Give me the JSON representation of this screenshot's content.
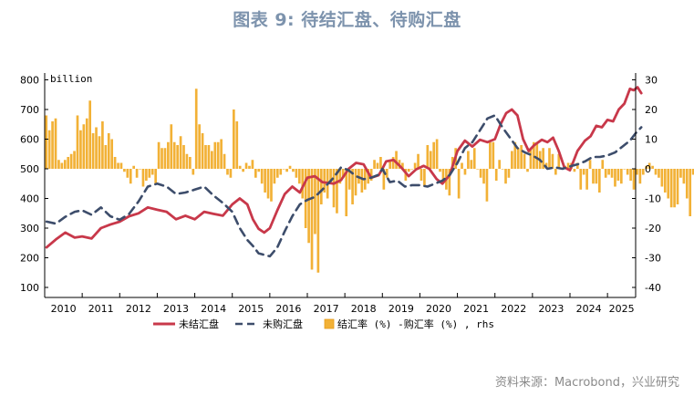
{
  "page": {
    "title": "图表 9:  待结汇盘、待购汇盘",
    "source": "资料来源：Macrobond，兴业研究"
  },
  "colors": {
    "line_settle": "#c8384a",
    "line_purchase": "#3d4d6b",
    "bar": "#f2b136",
    "bar_edge": "#e59a1a",
    "title": "#7d93ad"
  },
  "chart_data": {
    "type": "bar+line",
    "title": "图表 9:  待结汇盘、待购汇盘",
    "y_left": {
      "label": "billion",
      "lim": [
        100,
        800
      ],
      "ticks": [
        800,
        700,
        600,
        500,
        400,
        300,
        200,
        100
      ]
    },
    "y_right": {
      "lim": [
        -40,
        30
      ],
      "ticks": [
        30,
        20,
        10,
        0,
        -10,
        -20,
        -30,
        -40
      ]
    },
    "x": {
      "start": 2010,
      "end": 2025.75,
      "tick_labels": [
        "2010",
        "2011",
        "2012",
        "2013",
        "2014",
        "2015",
        "2016",
        "2017",
        "2018",
        "2019",
        "2020",
        "2021",
        "2022",
        "2023",
        "2024",
        "2025"
      ]
    },
    "legend": [
      "未结汇盘",
      "未购汇盘",
      "结汇率 (%) -购汇率 (%) , rhs"
    ],
    "series": [
      {
        "name": "未结汇盘",
        "axis": "left",
        "style": "solid",
        "points": [
          [
            2010.05,
            235
          ],
          [
            2010.3,
            262
          ],
          [
            2010.55,
            285
          ],
          [
            2010.8,
            268
          ],
          [
            2011.0,
            272
          ],
          [
            2011.25,
            265
          ],
          [
            2011.5,
            300
          ],
          [
            2011.75,
            312
          ],
          [
            2012.0,
            322
          ],
          [
            2012.25,
            340
          ],
          [
            2012.5,
            350
          ],
          [
            2012.75,
            370
          ],
          [
            2013.0,
            362
          ],
          [
            2013.25,
            355
          ],
          [
            2013.5,
            330
          ],
          [
            2013.75,
            342
          ],
          [
            2014.0,
            330
          ],
          [
            2014.25,
            355
          ],
          [
            2014.5,
            348
          ],
          [
            2014.75,
            342
          ],
          [
            2015.0,
            380
          ],
          [
            2015.2,
            400
          ],
          [
            2015.4,
            380
          ],
          [
            2015.55,
            330
          ],
          [
            2015.7,
            298
          ],
          [
            2015.85,
            285
          ],
          [
            2016.0,
            300
          ],
          [
            2016.2,
            360
          ],
          [
            2016.4,
            415
          ],
          [
            2016.6,
            440
          ],
          [
            2016.8,
            420
          ],
          [
            2017.0,
            470
          ],
          [
            2017.2,
            475
          ],
          [
            2017.4,
            455
          ],
          [
            2017.7,
            450
          ],
          [
            2017.9,
            462
          ],
          [
            2018.1,
            500
          ],
          [
            2018.3,
            520
          ],
          [
            2018.5,
            515
          ],
          [
            2018.7,
            470
          ],
          [
            2018.9,
            478
          ],
          [
            2019.0,
            500
          ],
          [
            2019.1,
            525
          ],
          [
            2019.3,
            530
          ],
          [
            2019.5,
            505
          ],
          [
            2019.7,
            475
          ],
          [
            2019.9,
            498
          ],
          [
            2020.1,
            510
          ],
          [
            2020.25,
            500
          ],
          [
            2020.45,
            465
          ],
          [
            2020.6,
            450
          ],
          [
            2020.8,
            480
          ],
          [
            2021.0,
            560
          ],
          [
            2021.2,
            595
          ],
          [
            2021.4,
            575
          ],
          [
            2021.6,
            598
          ],
          [
            2021.8,
            590
          ],
          [
            2022.0,
            600
          ],
          [
            2022.15,
            650
          ],
          [
            2022.3,
            688
          ],
          [
            2022.45,
            700
          ],
          [
            2022.6,
            680
          ],
          [
            2022.75,
            600
          ],
          [
            2022.9,
            560
          ],
          [
            2023.05,
            580
          ],
          [
            2023.25,
            598
          ],
          [
            2023.4,
            590
          ],
          [
            2023.55,
            605
          ],
          [
            2023.7,
            560
          ],
          [
            2023.85,
            505
          ],
          [
            2024.0,
            495
          ],
          [
            2024.2,
            560
          ],
          [
            2024.4,
            595
          ],
          [
            2024.55,
            610
          ],
          [
            2024.7,
            645
          ],
          [
            2024.85,
            640
          ],
          [
            2025.0,
            665
          ],
          [
            2025.15,
            660
          ],
          [
            2025.3,
            700
          ],
          [
            2025.45,
            720
          ],
          [
            2025.6,
            770
          ],
          [
            2025.7,
            765
          ],
          [
            2025.8,
            775
          ],
          [
            2025.9,
            755
          ]
        ]
      },
      {
        "name": "未购汇盘",
        "axis": "left",
        "style": "dashed",
        "points": [
          [
            2010.05,
            322
          ],
          [
            2010.3,
            315
          ],
          [
            2010.55,
            338
          ],
          [
            2010.8,
            355
          ],
          [
            2011.0,
            360
          ],
          [
            2011.25,
            345
          ],
          [
            2011.5,
            370
          ],
          [
            2011.75,
            340
          ],
          [
            2012.0,
            328
          ],
          [
            2012.25,
            348
          ],
          [
            2012.5,
            390
          ],
          [
            2012.75,
            440
          ],
          [
            2013.0,
            450
          ],
          [
            2013.25,
            440
          ],
          [
            2013.5,
            415
          ],
          [
            2013.75,
            420
          ],
          [
            2014.0,
            430
          ],
          [
            2014.25,
            440
          ],
          [
            2014.5,
            410
          ],
          [
            2014.75,
            385
          ],
          [
            2015.0,
            355
          ],
          [
            2015.2,
            300
          ],
          [
            2015.4,
            260
          ],
          [
            2015.55,
            240
          ],
          [
            2015.7,
            215
          ],
          [
            2015.85,
            210
          ],
          [
            2016.0,
            205
          ],
          [
            2016.2,
            235
          ],
          [
            2016.4,
            290
          ],
          [
            2016.6,
            340
          ],
          [
            2016.8,
            380
          ],
          [
            2017.0,
            395
          ],
          [
            2017.2,
            405
          ],
          [
            2017.4,
            430
          ],
          [
            2017.7,
            470
          ],
          [
            2017.9,
            505
          ],
          [
            2018.1,
            495
          ],
          [
            2018.3,
            475
          ],
          [
            2018.5,
            465
          ],
          [
            2018.7,
            470
          ],
          [
            2018.9,
            480
          ],
          [
            2019.0,
            500
          ],
          [
            2019.2,
            455
          ],
          [
            2019.4,
            460
          ],
          [
            2019.6,
            440
          ],
          [
            2019.8,
            445
          ],
          [
            2020.0,
            445
          ],
          [
            2020.2,
            440
          ],
          [
            2020.4,
            450
          ],
          [
            2020.6,
            460
          ],
          [
            2020.8,
            480
          ],
          [
            2021.0,
            520
          ],
          [
            2021.2,
            570
          ],
          [
            2021.4,
            590
          ],
          [
            2021.6,
            630
          ],
          [
            2021.8,
            670
          ],
          [
            2022.0,
            680
          ],
          [
            2022.2,
            640
          ],
          [
            2022.4,
            605
          ],
          [
            2022.6,
            570
          ],
          [
            2022.8,
            555
          ],
          [
            2023.0,
            545
          ],
          [
            2023.2,
            530
          ],
          [
            2023.4,
            500
          ],
          [
            2023.6,
            505
          ],
          [
            2023.8,
            500
          ],
          [
            2024.0,
            508
          ],
          [
            2024.2,
            515
          ],
          [
            2024.4,
            525
          ],
          [
            2024.6,
            540
          ],
          [
            2024.8,
            540
          ],
          [
            2025.0,
            545
          ],
          [
            2025.2,
            555
          ],
          [
            2025.4,
            575
          ],
          [
            2025.6,
            595
          ],
          [
            2025.75,
            620
          ],
          [
            2025.9,
            640
          ]
        ]
      }
    ],
    "bars": {
      "name": "结汇率 (%) -购汇率 (%) , rhs",
      "axis": "right",
      "start": 2010.0,
      "step": 0.0833,
      "values": [
        18,
        13,
        16,
        17,
        3,
        2,
        3,
        4,
        5,
        6,
        18,
        13,
        15,
        17,
        23,
        12,
        14,
        11,
        16,
        8,
        12,
        10,
        4,
        2,
        2,
        -1,
        -3,
        -5,
        1,
        -3,
        0,
        -6,
        -4,
        -3,
        -2,
        -5,
        9,
        7,
        7,
        9,
        15,
        9,
        8,
        11,
        8,
        5,
        4,
        -2,
        27,
        15,
        12,
        8,
        8,
        6,
        9,
        9,
        10,
        5,
        -2,
        -3,
        20,
        16,
        1,
        -1,
        2,
        1,
        3,
        -3,
        -1,
        -5,
        -8,
        -10,
        -11,
        -5,
        -3,
        -2,
        0,
        -1,
        1,
        -1,
        -3,
        -5,
        -10,
        -20,
        -25,
        -34,
        -22,
        -35,
        -12,
        -8,
        -10,
        -5,
        -13,
        -15,
        -5,
        -3,
        -16,
        -7,
        -12,
        -9,
        -5,
        -8,
        -7,
        -5,
        -4,
        3,
        2,
        4,
        -7,
        -3,
        3,
        4,
        6,
        3,
        2,
        -4,
        -1,
        0,
        2,
        5,
        -4,
        -6,
        8,
        6,
        9,
        10,
        -1,
        -4,
        -7,
        -9,
        4,
        7,
        -10,
        2,
        -2,
        6,
        3,
        7,
        0,
        -3,
        -5,
        -11,
        9,
        9,
        -4,
        3,
        0,
        -5,
        -3,
        6,
        9,
        7,
        8,
        5,
        -1,
        7,
        9,
        9,
        6,
        7,
        2,
        7,
        5,
        -2,
        5,
        0,
        1,
        2,
        2,
        -1,
        2,
        -7,
        -2,
        -7,
        3,
        -5,
        -5,
        -8,
        3,
        -3,
        -2,
        -3,
        -6,
        -4,
        -5,
        0,
        -2,
        -4,
        -7,
        -2,
        -5,
        -2,
        1,
        2,
        1,
        -2,
        -3,
        -6,
        -8,
        -10,
        -13,
        -13,
        -12,
        -3,
        -5,
        -10,
        -16,
        -2,
        -8,
        -1,
        2
      ]
    }
  }
}
